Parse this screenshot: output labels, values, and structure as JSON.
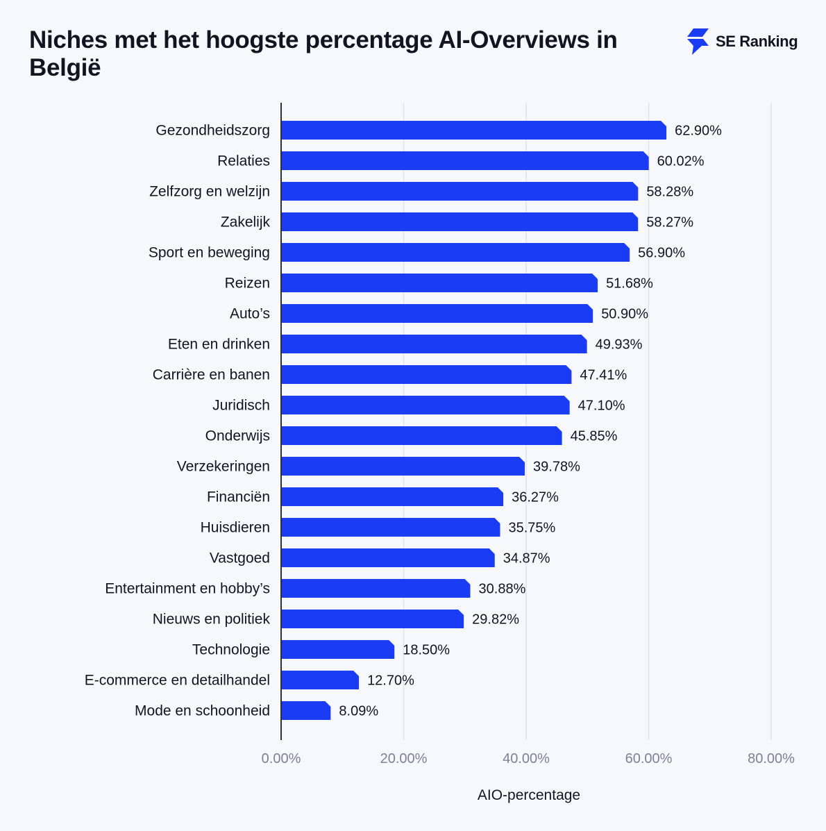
{
  "title": "Niches met het hoogste percentage AI-Overviews in België",
  "brand": {
    "name": "SE Ranking",
    "icon": "se-ranking-logo-icon",
    "color": "#1a3cf5"
  },
  "chart_data": {
    "type": "bar",
    "orientation": "horizontal",
    "categories": [
      "Gezondheidszorg",
      "Relaties",
      "Zelfzorg en welzijn",
      "Zakelijk",
      "Sport en beweging",
      "Reizen",
      "Auto’s",
      "Eten en drinken",
      "Carrière en banen",
      "Juridisch",
      "Onderwijs",
      "Verzekeringen",
      "Financiën",
      "Huisdieren",
      "Vastgoed",
      "Entertainment en hobby’s",
      "Nieuws en politiek",
      "Technologie",
      "E-commerce en detailhandel",
      "Mode en schoonheid"
    ],
    "values": [
      62.9,
      60.02,
      58.28,
      58.27,
      56.9,
      51.68,
      50.9,
      49.93,
      47.41,
      47.1,
      45.85,
      39.78,
      36.27,
      35.75,
      34.87,
      30.88,
      29.82,
      18.5,
      12.7,
      8.09
    ],
    "value_labels": [
      "62.90%",
      "60.02%",
      "58.28%",
      "58.27%",
      "56.90%",
      "51.68%",
      "50.90%",
      "49.93%",
      "47.41%",
      "47.10%",
      "45.85%",
      "39.78%",
      "36.27%",
      "35.75%",
      "34.87%",
      "30.88%",
      "29.82%",
      "18.50%",
      "12.70%",
      "8.09%"
    ],
    "xlabel": "AIO-percentage",
    "ylabel": "",
    "xlim": [
      0,
      80
    ],
    "x_ticks": [
      0,
      20,
      40,
      60,
      80
    ],
    "x_tick_labels": [
      "0.00%",
      "20.00%",
      "40.00%",
      "60.00%",
      "80.00%"
    ],
    "grid": true,
    "bar_color": "#1a3cf5",
    "grid_color": "#dfe3ee",
    "axis_color": "#2b2f3a"
  }
}
